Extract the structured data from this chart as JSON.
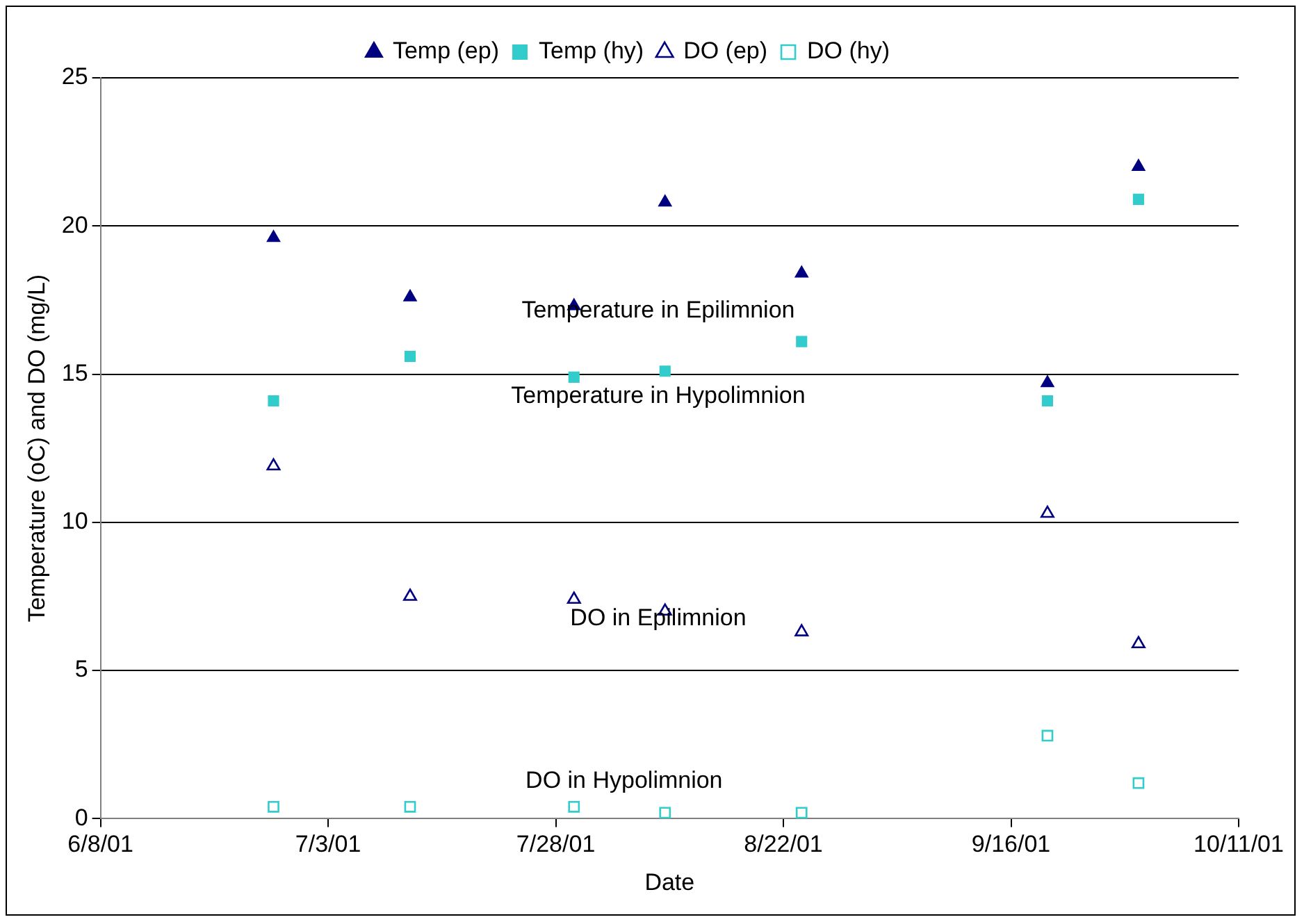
{
  "chart_data": {
    "type": "scatter",
    "xlabel": "Date",
    "ylabel": "Temperature (oC) and DO (mg/L)",
    "x": [
      "2001-06-27",
      "2001-07-12",
      "2001-07-30",
      "2001-08-09",
      "2001-08-24",
      "2001-09-20",
      "2001-09-30"
    ],
    "series": [
      {
        "name": "Temp (ep)",
        "color": "#000080",
        "marker": "triangle",
        "values": [
          19.6,
          17.6,
          17.3,
          20.8,
          18.4,
          14.7,
          22.0
        ]
      },
      {
        "name": "Temp (hy)",
        "color": "#33cccc",
        "marker": "square",
        "values": [
          14.1,
          15.6,
          14.9,
          15.1,
          16.1,
          14.1,
          20.9
        ]
      },
      {
        "name": "DO (ep)",
        "color": "#000080",
        "marker": "triangle-open",
        "values": [
          11.9,
          7.5,
          7.4,
          7.0,
          6.3,
          10.3,
          5.9
        ]
      },
      {
        "name": "DO (hy)",
        "color": "#33cccc",
        "marker": "square-open",
        "values": [
          0.4,
          0.4,
          0.4,
          0.2,
          0.2,
          2.8,
          1.2
        ]
      }
    ],
    "xlim": [
      "2001-06-08",
      "2001-10-11"
    ],
    "xticks": [
      {
        "value": "2001-06-08",
        "label": "6/8/01"
      },
      {
        "value": "2001-07-03",
        "label": "7/3/01"
      },
      {
        "value": "2001-07-28",
        "label": "7/28/01"
      },
      {
        "value": "2001-08-22",
        "label": "8/22/01"
      },
      {
        "value": "2001-09-16",
        "label": "9/16/01"
      },
      {
        "value": "2001-10-11",
        "label": "10/11/01"
      }
    ],
    "ylim": [
      0,
      25
    ],
    "yticks": [
      0,
      5,
      10,
      15,
      20,
      25
    ],
    "grid": "y",
    "legend": "top",
    "annotations": [
      "Temperature in Epilimnion",
      "Temperature in Hypolimnion",
      "DO in Epilimnion",
      "DO in Hypolimnion"
    ]
  }
}
